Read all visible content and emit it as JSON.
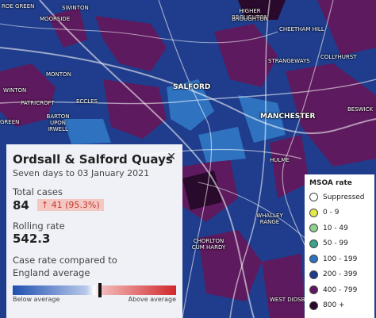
{
  "map": {
    "labels": [
      "ROE GREEN",
      "SWINTON",
      "MOORSIDE",
      "HIGHER BROUGHTON",
      "BROUGHTON",
      "CHEETHAM HILL",
      "STRANGEWAYS",
      "COLLYHURST",
      "MONTON",
      "WINTON",
      "ECCLES",
      "PATRICROFT",
      "BARTON UPON IRWELL",
      "SALFORD",
      "MANCHESTER",
      "BESWICK",
      "GREEN",
      "HULME",
      "WHALLEY RANGE",
      "CHORLTON CUM HARDY",
      "WEST DIDSB"
    ]
  },
  "popup": {
    "title": "Ordsall & Salford Quays",
    "subtitle": "Seven days to 03 January 2021",
    "total_label": "Total cases",
    "total": "84",
    "change": "↑ 41 (95.3%)",
    "rate_label": "Rolling rate",
    "rate": "542.3",
    "compare_label": "Case rate compared to England average",
    "below": "Below average",
    "above": "Above average"
  },
  "legend": {
    "title": "MSOA rate",
    "items": [
      {
        "label": "Suppressed",
        "color": "#ffffff"
      },
      {
        "label": "0 - 9",
        "color": "#e3e84a"
      },
      {
        "label": "10 - 49",
        "color": "#8fd18b"
      },
      {
        "label": "50 - 99",
        "color": "#3aa58c"
      },
      {
        "label": "100 - 199",
        "color": "#2e72c0"
      },
      {
        "label": "200 - 399",
        "color": "#1f3d8c"
      },
      {
        "label": "400 - 799",
        "color": "#5d1a5e"
      },
      {
        "label": "800 +",
        "color": "#2a0a2c"
      }
    ]
  }
}
